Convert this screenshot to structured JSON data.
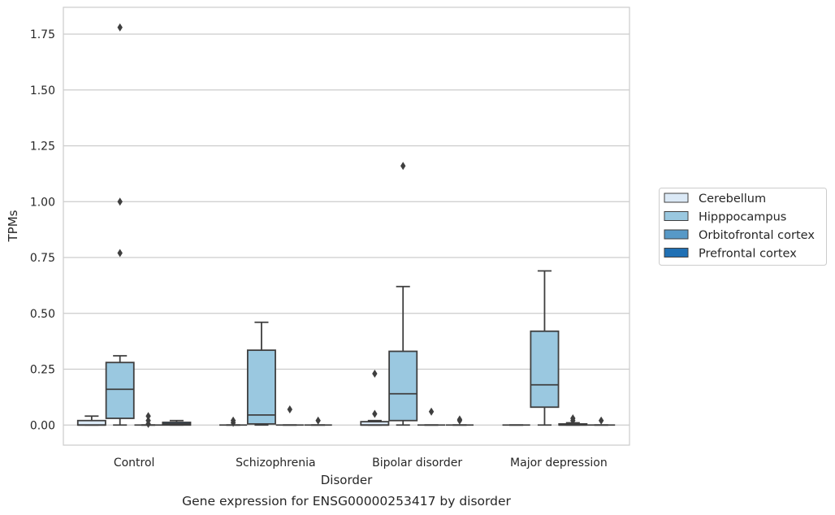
{
  "chart_data": {
    "type": "box",
    "xlabel": "Disorder",
    "ylabel": "TPMs",
    "caption": "Gene expression for ENSG00000253417 by disorder",
    "categories": [
      "Control",
      "Schizophrenia",
      "Bipolar disorder",
      "Major depression"
    ],
    "ylim": [
      -0.09,
      1.87
    ],
    "yticks": [
      0.0,
      0.25,
      0.5,
      0.75,
      1.0,
      1.25,
      1.5,
      1.75
    ],
    "ytick_labels": [
      "0.00",
      "0.25",
      "0.50",
      "0.75",
      "1.00",
      "1.25",
      "1.50",
      "1.75"
    ],
    "grid": "horizontal",
    "legend_position": "right",
    "colors": {
      "Cerebellum": "#dbe9f6",
      "Hipppocampus": "#9ac8e0",
      "Orbitofrontal cortex": "#5799c7",
      "Prefrontal cortex": "#2070b4",
      "box_line": "#3f3f3f",
      "grid": "#cccccc",
      "frame": "#cccccc"
    },
    "series": [
      {
        "name": "Cerebellum",
        "boxes": [
          {
            "q1": 0.0,
            "median": 0.0,
            "q3": 0.02,
            "whisker_low": 0.0,
            "whisker_high": 0.04,
            "outliers": []
          },
          {
            "q1": 0.0,
            "median": 0.0,
            "q3": 0.0,
            "whisker_low": 0.0,
            "whisker_high": 0.0,
            "outliers": [
              0.01,
              0.02
            ]
          },
          {
            "q1": 0.0,
            "median": 0.0,
            "q3": 0.015,
            "whisker_low": 0.0,
            "whisker_high": 0.02,
            "outliers": [
              0.05,
              0.23
            ]
          },
          {
            "q1": 0.0,
            "median": 0.0,
            "q3": 0.0,
            "whisker_low": 0.0,
            "whisker_high": 0.0,
            "outliers": []
          }
        ]
      },
      {
        "name": "Hipppocampus",
        "boxes": [
          {
            "q1": 0.03,
            "median": 0.16,
            "q3": 0.28,
            "whisker_low": 0.0,
            "whisker_high": 0.31,
            "outliers": [
              0.77,
              1.0,
              1.78
            ]
          },
          {
            "q1": 0.005,
            "median": 0.045,
            "q3": 0.335,
            "whisker_low": 0.0,
            "whisker_high": 0.46,
            "outliers": []
          },
          {
            "q1": 0.02,
            "median": 0.14,
            "q3": 0.33,
            "whisker_low": 0.0,
            "whisker_high": 0.62,
            "outliers": [
              1.16
            ]
          },
          {
            "q1": 0.08,
            "median": 0.18,
            "q3": 0.42,
            "whisker_low": 0.0,
            "whisker_high": 0.69,
            "outliers": []
          }
        ]
      },
      {
        "name": "Orbitofrontal cortex",
        "boxes": [
          {
            "q1": 0.0,
            "median": 0.0,
            "q3": 0.0,
            "whisker_low": 0.0,
            "whisker_high": 0.0,
            "outliers": [
              0.005,
              0.02,
              0.04
            ]
          },
          {
            "q1": 0.0,
            "median": 0.0,
            "q3": 0.0,
            "whisker_low": 0.0,
            "whisker_high": 0.0,
            "outliers": [
              0.07
            ]
          },
          {
            "q1": 0.0,
            "median": 0.0,
            "q3": 0.0,
            "whisker_low": 0.0,
            "whisker_high": 0.0,
            "outliers": [
              0.06
            ]
          },
          {
            "q1": 0.0,
            "median": 0.0,
            "q3": 0.005,
            "whisker_low": 0.0,
            "whisker_high": 0.01,
            "outliers": [
              0.02,
              0.03
            ]
          }
        ]
      },
      {
        "name": "Prefrontal cortex",
        "boxes": [
          {
            "q1": 0.0,
            "median": 0.005,
            "q3": 0.012,
            "whisker_low": 0.0,
            "whisker_high": 0.02,
            "outliers": []
          },
          {
            "q1": 0.0,
            "median": 0.0,
            "q3": 0.0,
            "whisker_low": 0.0,
            "whisker_high": 0.0,
            "outliers": [
              0.02
            ]
          },
          {
            "q1": 0.0,
            "median": 0.0,
            "q3": 0.0,
            "whisker_low": 0.0,
            "whisker_high": 0.0,
            "outliers": [
              0.02,
              0.025
            ]
          },
          {
            "q1": 0.0,
            "median": 0.0,
            "q3": 0.0,
            "whisker_low": 0.0,
            "whisker_high": 0.0,
            "outliers": [
              0.02
            ]
          }
        ]
      }
    ]
  }
}
